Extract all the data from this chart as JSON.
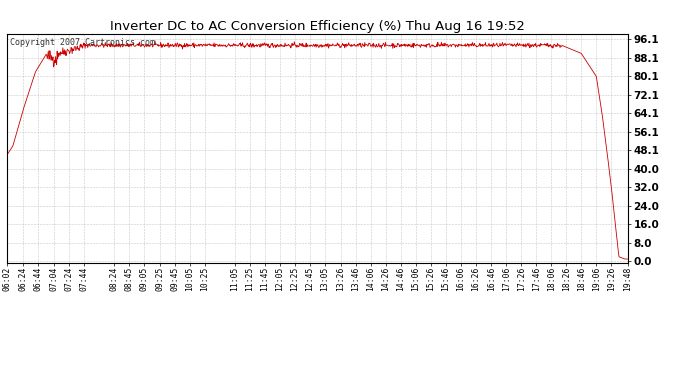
{
  "title": "Inverter DC to AC Conversion Efficiency (%) Thu Aug 16 19:52",
  "copyright_text": "Copyright 2007 Cartronics.com",
  "line_color": "#cc0000",
  "bg_color": "#ffffff",
  "plot_bg_color": "#ffffff",
  "grid_color": "#bbbbbb",
  "yticks": [
    0.0,
    8.0,
    16.0,
    24.0,
    32.0,
    40.0,
    48.1,
    56.1,
    64.1,
    72.1,
    80.1,
    88.1,
    96.1
  ],
  "ylim": [
    -0.5,
    98.5
  ],
  "xtick_labels": [
    "06:02",
    "06:24",
    "06:44",
    "07:04",
    "07:24",
    "07:44",
    "08:24",
    "08:45",
    "09:05",
    "09:25",
    "09:45",
    "10:05",
    "10:25",
    "11:05",
    "11:25",
    "11:45",
    "12:05",
    "12:25",
    "12:45",
    "13:05",
    "13:26",
    "13:46",
    "14:06",
    "14:26",
    "14:46",
    "15:06",
    "15:26",
    "15:46",
    "16:06",
    "16:26",
    "16:46",
    "17:06",
    "17:26",
    "17:46",
    "18:06",
    "18:26",
    "18:46",
    "19:06",
    "19:26",
    "19:48"
  ],
  "start_time": "06:02",
  "end_time": "19:48"
}
